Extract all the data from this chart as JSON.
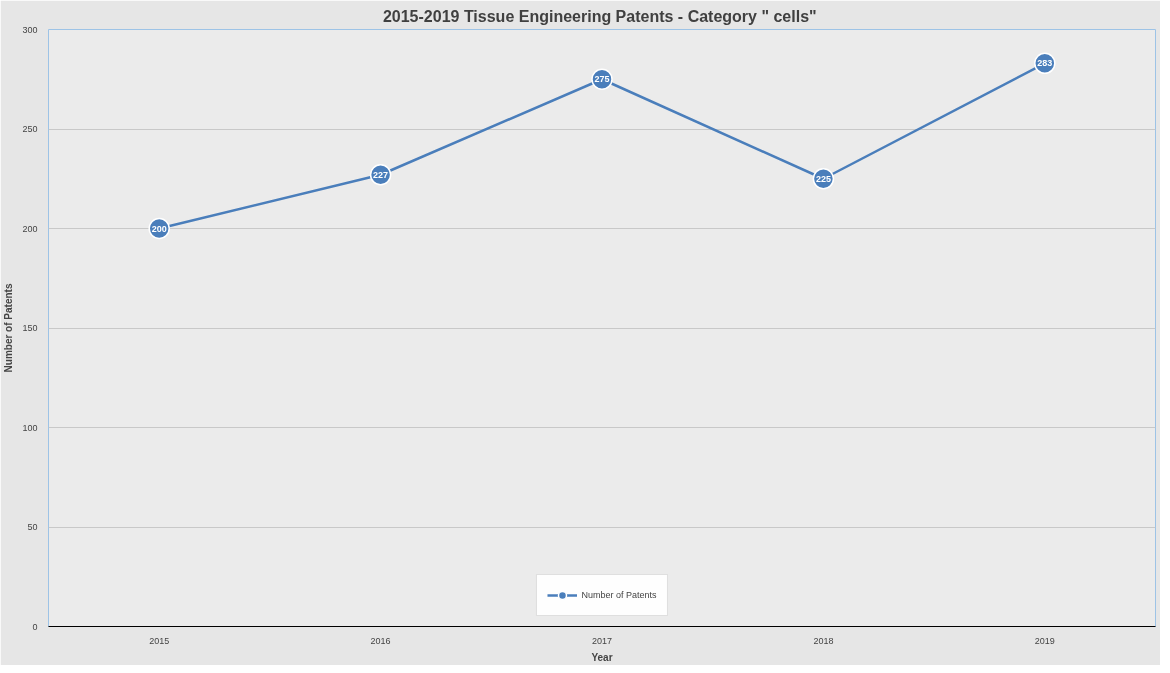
{
  "chart_data": {
    "type": "line",
    "title": "2015-2019  Tissue Engineering Patents - Category \" cells\"",
    "xlabel": "Year",
    "ylabel": "Number of Patents",
    "categories": [
      "2015",
      "2016",
      "2017",
      "2018",
      "2019"
    ],
    "series": [
      {
        "name": "Number of Patents",
        "color": "#4a7ebb",
        "values": [
          200,
          227,
          275,
          225,
          283
        ]
      }
    ],
    "ylim": [
      0,
      300
    ],
    "yticks": [
      0,
      50,
      100,
      150,
      200,
      250,
      300
    ],
    "grid": "y",
    "legend": "bottom",
    "marker": "circle",
    "line_style": "solid",
    "data_labels": true
  }
}
